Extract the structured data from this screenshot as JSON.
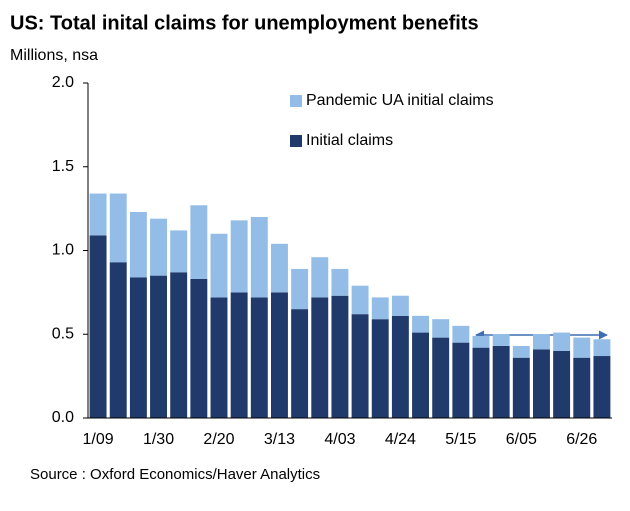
{
  "chart_data": {
    "type": "stacked_bar",
    "title": "US: Total inital claims for unemployment benefits",
    "y_label": "Millions, nsa",
    "source": "Source : Oxford Economics/Haver Analytics",
    "categories": [
      "1/09",
      null,
      null,
      "1/30",
      null,
      null,
      "2/20",
      null,
      null,
      "3/13",
      null,
      null,
      "4/03",
      null,
      null,
      "4/24",
      null,
      null,
      "5/15",
      null,
      null,
      "6/05",
      null,
      null,
      "6/26",
      null
    ],
    "series": [
      {
        "name": "Initial claims",
        "color": "#203a6b",
        "values": [
          1.09,
          0.93,
          0.84,
          0.85,
          0.87,
          0.83,
          0.72,
          0.75,
          0.72,
          0.75,
          0.65,
          0.72,
          0.73,
          0.62,
          0.59,
          0.61,
          0.51,
          0.48,
          0.45,
          0.42,
          0.43,
          0.36,
          0.41,
          0.4,
          0.36,
          0.37
        ]
      },
      {
        "name": "Pandemic UA initial claims",
        "color": "#93bde6",
        "values": [
          0.25,
          0.41,
          0.39,
          0.34,
          0.25,
          0.44,
          0.38,
          0.43,
          0.48,
          0.29,
          0.24,
          0.24,
          0.16,
          0.17,
          0.13,
          0.12,
          0.1,
          0.11,
          0.1,
          0.07,
          0.07,
          0.07,
          0.09,
          0.11,
          0.12,
          0.1
        ]
      }
    ],
    "ylim": [
      0,
      2
    ],
    "yticks": [
      {
        "value": 0,
        "label": "0.0"
      },
      0.5,
      {
        "value": 1,
        "label": "1.0"
      },
      1.5,
      {
        "value": 2,
        "label": "2.0"
      }
    ],
    "grid": false,
    "legend": "top-right"
  }
}
